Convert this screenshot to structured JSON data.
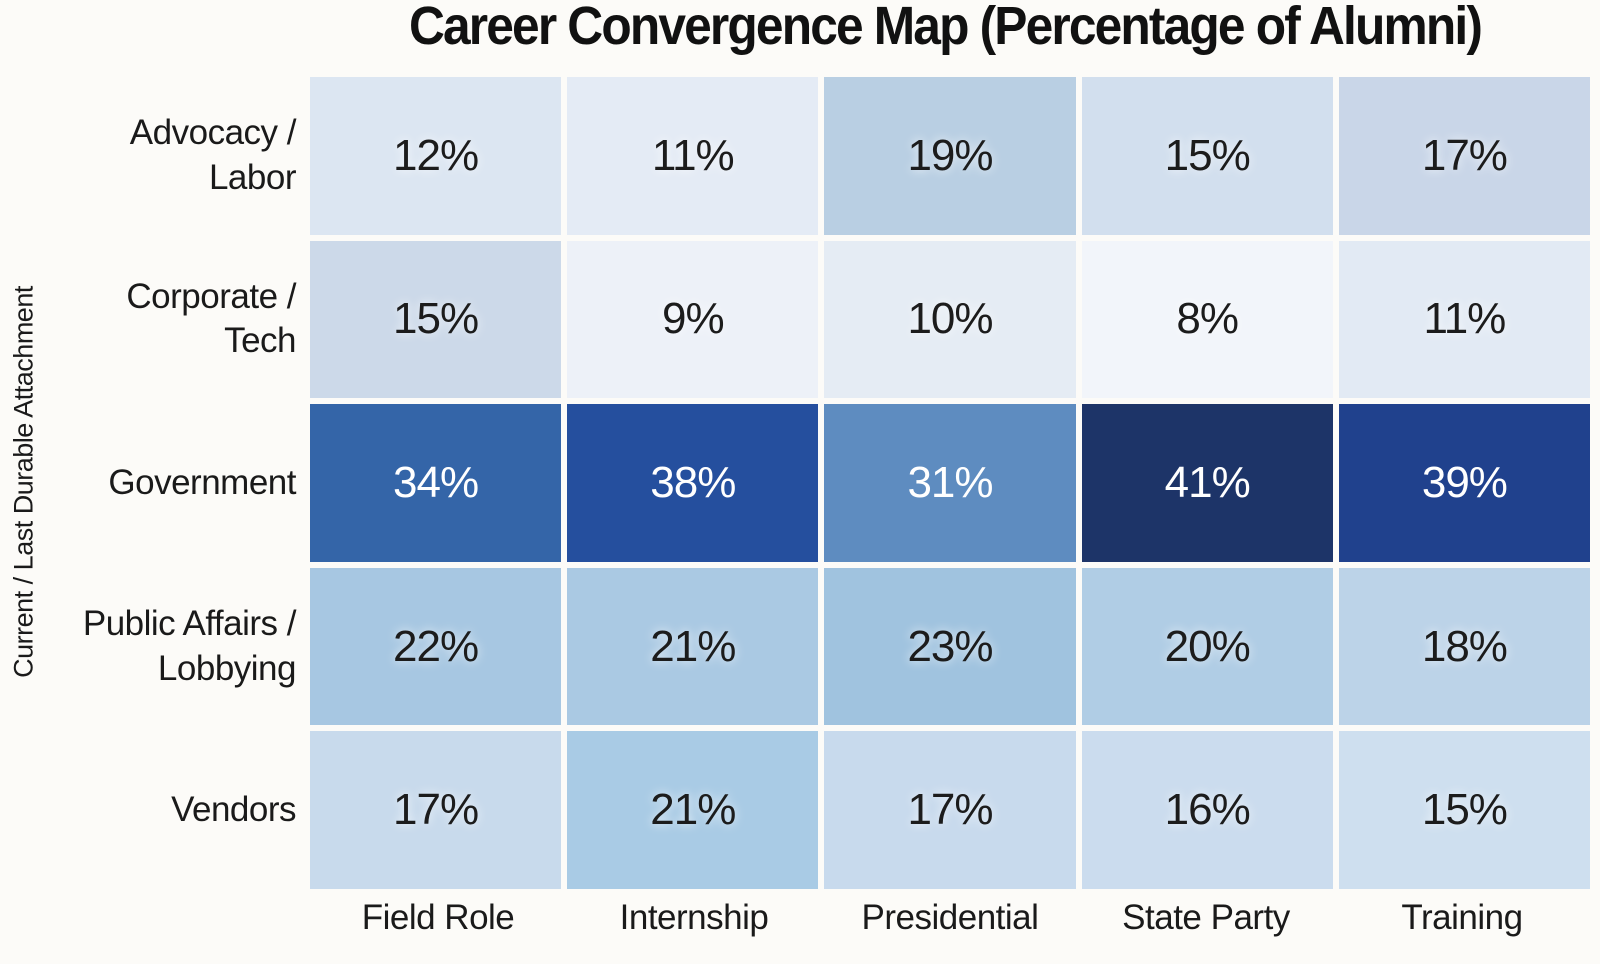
{
  "page": {
    "background": "#fcfbf8"
  },
  "chart_data": {
    "type": "heatmap",
    "title": "Career Convergence Map (Percentage of Alumni)",
    "ylabel": "Current / Last Durable Attachment",
    "xlabel": "",
    "legend": "none",
    "grid": "white gaps between cells",
    "rows": [
      "Advocacy /\nLabor",
      "Corporate /\nTech",
      "Government",
      "Public Affairs /\nLobbying",
      "Vendors"
    ],
    "columns": [
      "Field Role",
      "Internship",
      "Presidential",
      "State Party",
      "Training"
    ],
    "values": [
      [
        12,
        11,
        19,
        15,
        17
      ],
      [
        15,
        9,
        10,
        8,
        11
      ],
      [
        34,
        38,
        31,
        41,
        39
      ],
      [
        22,
        21,
        23,
        20,
        18
      ],
      [
        17,
        21,
        17,
        16,
        15
      ]
    ],
    "value_suffix": "%",
    "value_range": [
      8,
      41
    ],
    "cell_colors": [
      [
        "#dce6f2",
        "#e4ebf5",
        "#b9cfe3",
        "#d2dfee",
        "#c9d6e8"
      ],
      [
        "#ccd9e9",
        "#edf1f8",
        "#e5ecf4",
        "#f2f5fa",
        "#e2eaf4"
      ],
      [
        "#3465a8",
        "#254f9e",
        "#5e8cc0",
        "#1d3468",
        "#20418d"
      ],
      [
        "#a7c7e2",
        "#aac9e3",
        "#a0c3df",
        "#b0cde5",
        "#bcd3e8"
      ],
      [
        "#c8daec",
        "#a9cbe5",
        "#c8daed",
        "#cbdcee",
        "#cedfef"
      ]
    ],
    "dark_text_color": "#1c1c1c",
    "light_text_color": "#ffffff",
    "title_color": "#111111"
  }
}
